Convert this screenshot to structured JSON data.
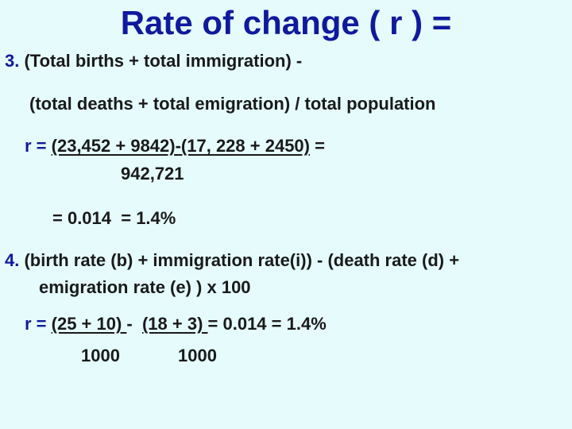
{
  "title": "Rate of change ( r ) =",
  "item3": {
    "number": "3.",
    "line1": "(Total births + total immigration) -",
    "line2": "(total deaths + total emigration) / total population",
    "formula": {
      "prefix": "r = ",
      "numerator": "(23,452 + 9842)-(17, 228 + 2450)",
      "suffix": " =",
      "denominator": "942,721",
      "result": "= 0.014  = 1.4%"
    }
  },
  "item4": {
    "number": "4.",
    "line1": "(birth rate (b) + immigration rate(i)) - (death rate (d) +",
    "line2": "emigration rate (e) ) x 100",
    "formula": {
      "prefix": "r = ",
      "term1": "(25 + 10) ",
      "minus": "-  ",
      "term2": "(18 + 3) ",
      "result": "= 0.014 = 1.4%",
      "denominator1": "1000",
      "denominator2": "1000"
    }
  }
}
